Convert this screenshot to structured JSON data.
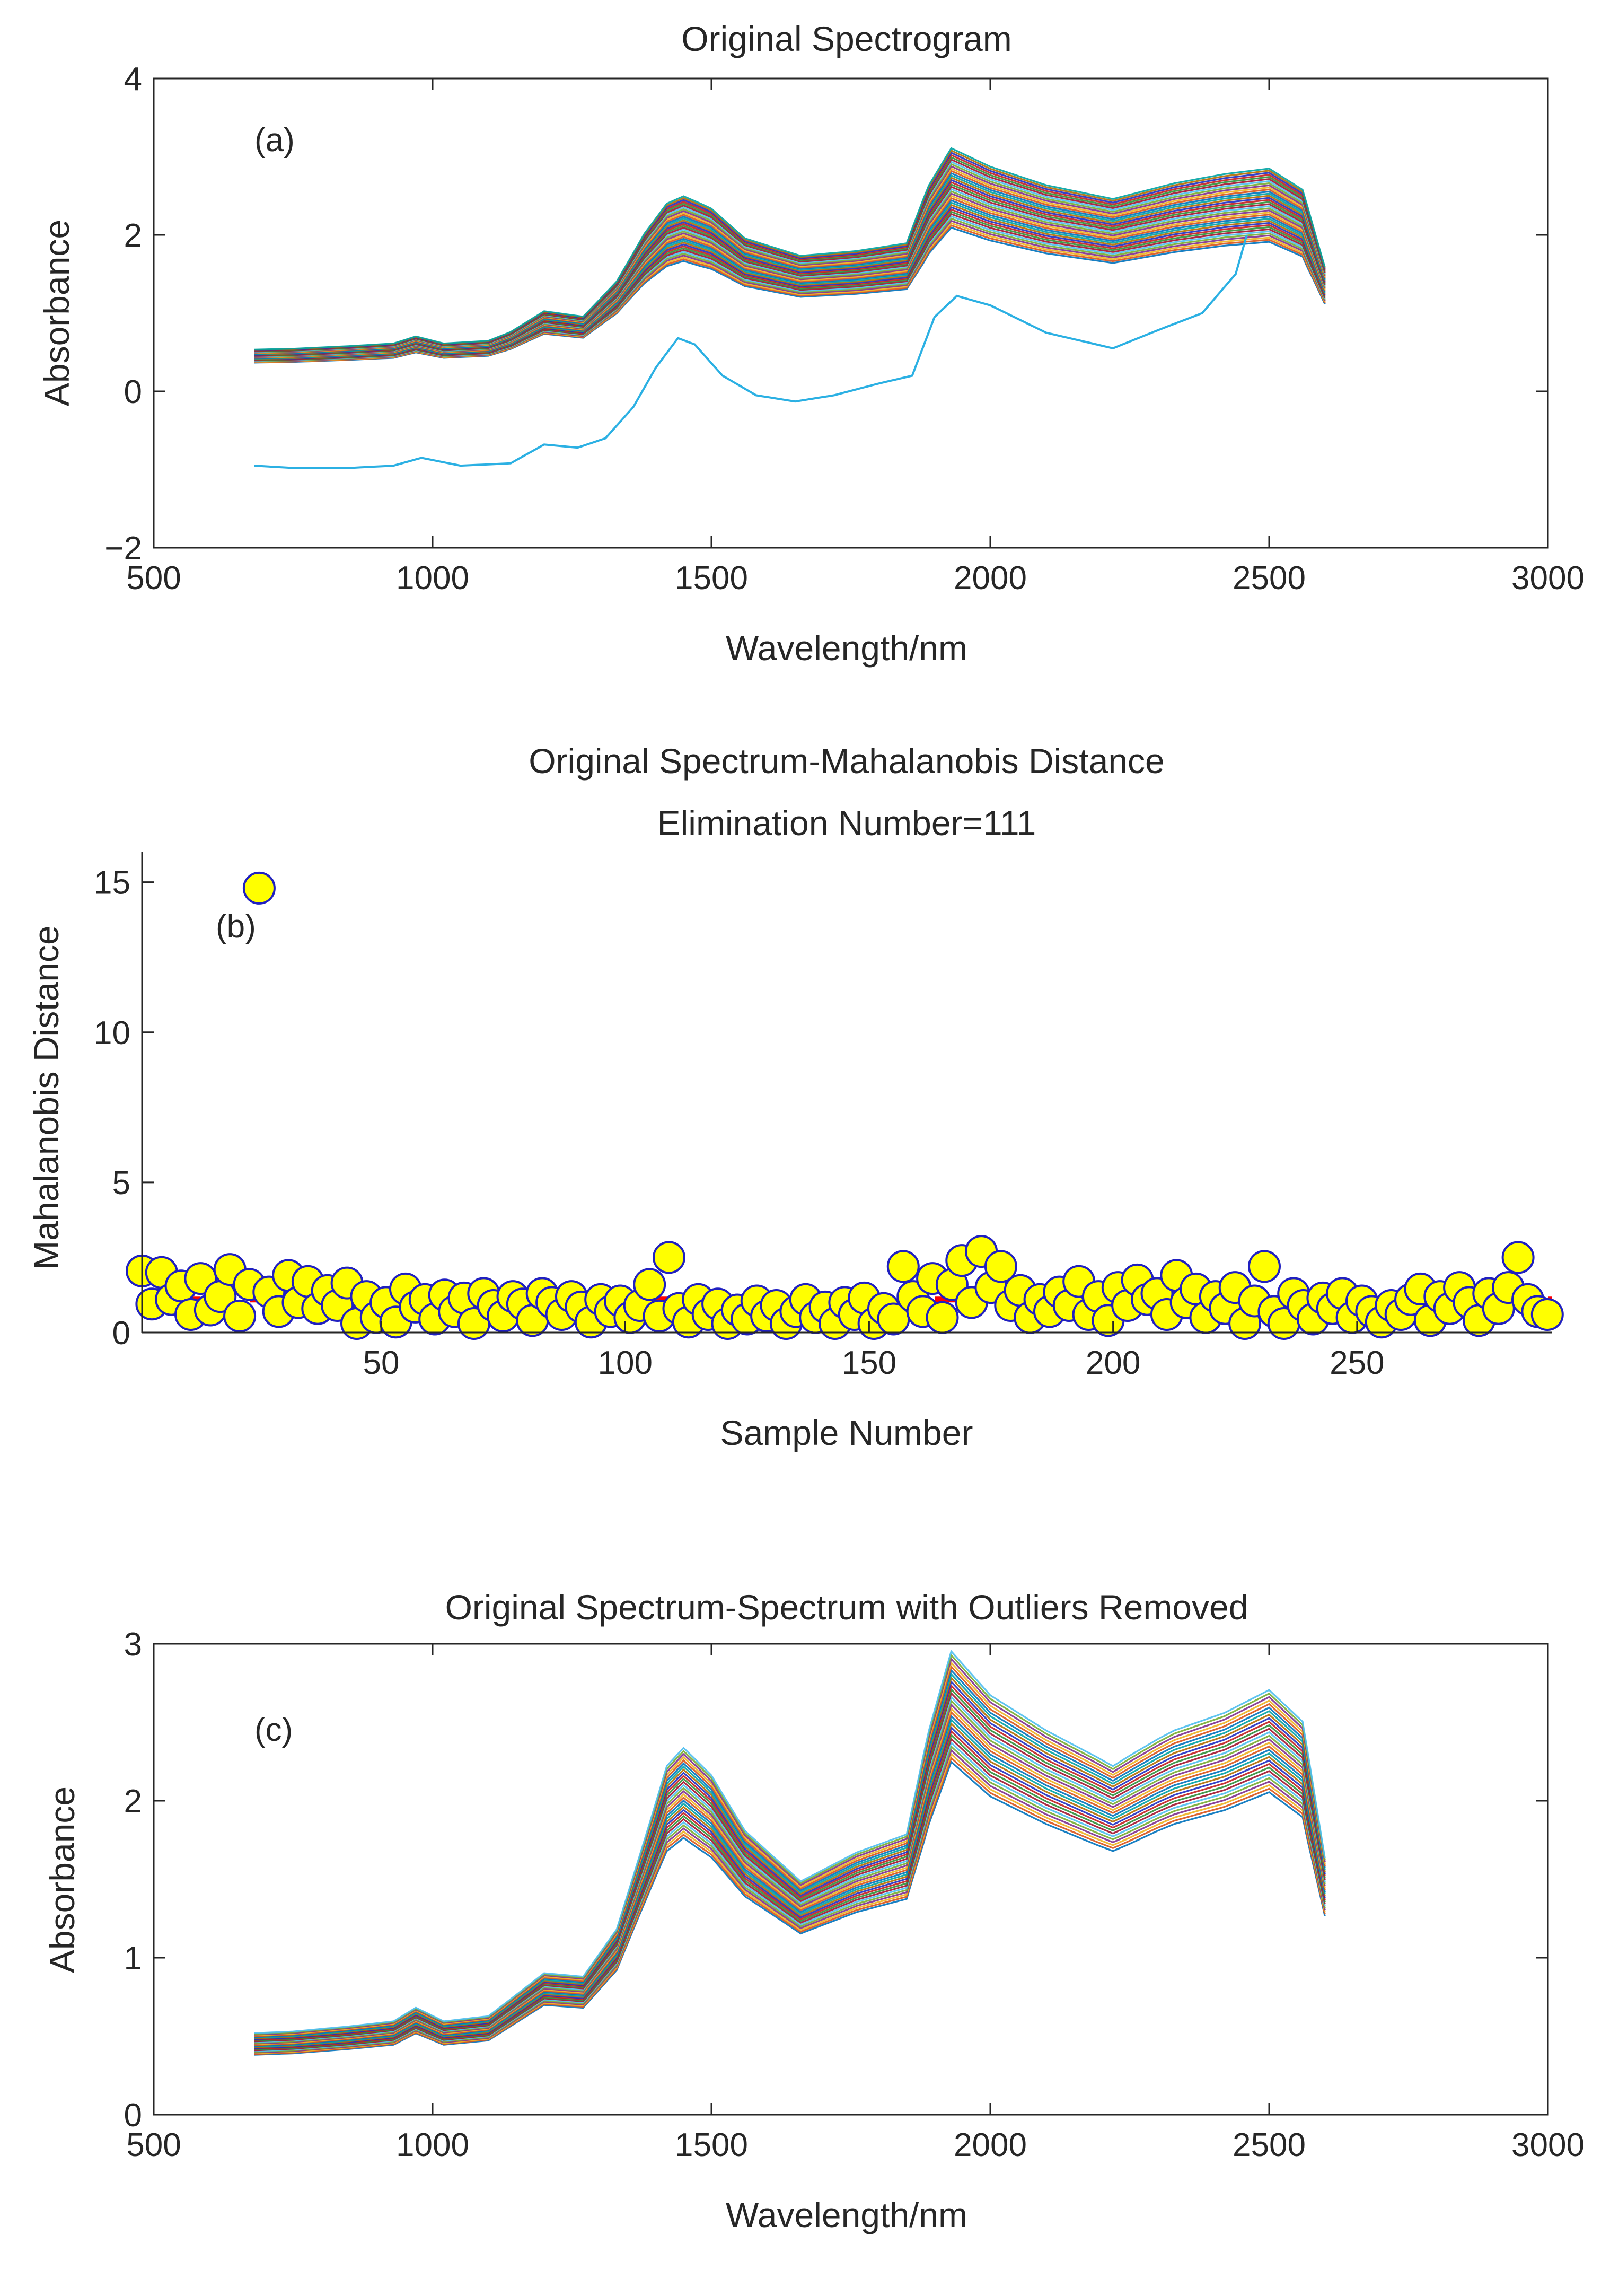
{
  "figure": {
    "panels": [
      {
        "title_lines": [
          "Original Spectrogram"
        ],
        "xlabel": "Wavelength/nm",
        "ylabel": "Absorbance",
        "panel_label": "(a)"
      },
      {
        "title_lines": [
          "Original Spectrum-Mahalanobis Distance",
          "Elimination Number=111"
        ],
        "xlabel": "Sample Number",
        "ylabel": "Mahalanobis Distance",
        "panel_label": "(b)"
      },
      {
        "title_lines": [
          "Original Spectrum-Spectrum with Outliers Removed"
        ],
        "xlabel": "Wavelength/nm",
        "ylabel": "Absorbance",
        "panel_label": "(c)"
      }
    ]
  },
  "chart_data": [
    {
      "type": "line",
      "title": "Original Spectrogram",
      "xlabel": "Wavelength/nm",
      "ylabel": "Absorbance",
      "xlim": [
        500,
        3000
      ],
      "ylim": [
        -2,
        4
      ],
      "xticks": [
        500,
        1000,
        1500,
        2000,
        2500,
        3000
      ],
      "yticks": [
        -2,
        0,
        2,
        4
      ],
      "x": [
        680,
        750,
        850,
        930,
        970,
        1020,
        1100,
        1140,
        1200,
        1270,
        1330,
        1380,
        1420,
        1450,
        1500,
        1560,
        1660,
        1760,
        1850,
        1890,
        1930,
        2000,
        2100,
        2220,
        2330,
        2420,
        2500,
        2560,
        2600
      ],
      "mean_spectrum": [
        0.45,
        0.46,
        0.49,
        0.52,
        0.6,
        0.52,
        0.55,
        0.65,
        0.88,
        0.82,
        1.2,
        1.7,
        2.0,
        2.08,
        1.95,
        1.65,
        1.47,
        1.52,
        1.6,
        2.2,
        2.6,
        2.4,
        2.2,
        2.05,
        2.22,
        2.32,
        2.38,
        2.15,
        1.35
      ],
      "spread": 0.18,
      "line_count": 290,
      "outlier_spectrum": {
        "x": [
          680,
          750,
          850,
          930,
          980,
          1050,
          1140,
          1200,
          1260,
          1310,
          1360,
          1400,
          1440,
          1470,
          1520,
          1580,
          1650,
          1720,
          1800,
          1860,
          1900,
          1940,
          2000,
          2100,
          2220,
          2300,
          2380,
          2440,
          2460
        ],
        "y": [
          -0.95,
          -0.98,
          -0.98,
          -0.95,
          -0.85,
          -0.95,
          -0.92,
          -0.68,
          -0.72,
          -0.6,
          -0.2,
          0.3,
          0.68,
          0.6,
          0.2,
          -0.05,
          -0.13,
          -0.05,
          0.1,
          0.2,
          0.95,
          1.22,
          1.1,
          0.75,
          0.55,
          0.78,
          1.0,
          1.5,
          2.0
        ],
        "color": "#2bb0e3"
      }
    },
    {
      "type": "scatter",
      "title": "Original Spectrum-Mahalanobis Distance",
      "subtitle": "Elimination Number=111",
      "xlabel": "Sample Number",
      "ylabel": "Mahalanobis Distance",
      "xlim": [
        1,
        290
      ],
      "ylim": [
        0,
        16
      ],
      "xticks": [
        50,
        100,
        150,
        200,
        250
      ],
      "yticks": [
        0,
        5,
        10,
        15
      ],
      "threshold": 1.1,
      "threshold_color": "#ff0000",
      "marker_fill": "#ffff00",
      "marker_edge": "#2020c0",
      "points": [
        {
          "x": 1,
          "y": 2.05
        },
        {
          "x": 3,
          "y": 0.95
        },
        {
          "x": 5,
          "y": 2.0
        },
        {
          "x": 7,
          "y": 1.1
        },
        {
          "x": 9,
          "y": 1.55
        },
        {
          "x": 11,
          "y": 0.6
        },
        {
          "x": 13,
          "y": 1.8
        },
        {
          "x": 15,
          "y": 0.75
        },
        {
          "x": 17,
          "y": 1.2
        },
        {
          "x": 19,
          "y": 2.1
        },
        {
          "x": 21,
          "y": 0.55
        },
        {
          "x": 23,
          "y": 1.6
        },
        {
          "x": 25,
          "y": 14.8
        },
        {
          "x": 27,
          "y": 1.35
        },
        {
          "x": 29,
          "y": 0.7
        },
        {
          "x": 31,
          "y": 1.9
        },
        {
          "x": 33,
          "y": 1.0
        },
        {
          "x": 35,
          "y": 1.7
        },
        {
          "x": 37,
          "y": 0.8
        },
        {
          "x": 39,
          "y": 1.4
        },
        {
          "x": 41,
          "y": 0.9
        },
        {
          "x": 43,
          "y": 1.65
        },
        {
          "x": 45,
          "y": 0.3
        },
        {
          "x": 47,
          "y": 1.2
        },
        {
          "x": 49,
          "y": 0.5
        },
        {
          "x": 51,
          "y": 1.0
        },
        {
          "x": 53,
          "y": 0.35
        },
        {
          "x": 55,
          "y": 1.45
        },
        {
          "x": 57,
          "y": 0.85
        },
        {
          "x": 59,
          "y": 1.1
        },
        {
          "x": 61,
          "y": 0.45
        },
        {
          "x": 63,
          "y": 1.25
        },
        {
          "x": 65,
          "y": 0.7
        },
        {
          "x": 67,
          "y": 1.15
        },
        {
          "x": 69,
          "y": 0.3
        },
        {
          "x": 71,
          "y": 1.3
        },
        {
          "x": 73,
          "y": 0.9
        },
        {
          "x": 75,
          "y": 0.55
        },
        {
          "x": 77,
          "y": 1.2
        },
        {
          "x": 79,
          "y": 0.95
        },
        {
          "x": 81,
          "y": 0.4
        },
        {
          "x": 83,
          "y": 1.3
        },
        {
          "x": 85,
          "y": 1.0
        },
        {
          "x": 87,
          "y": 0.6
        },
        {
          "x": 89,
          "y": 1.2
        },
        {
          "x": 91,
          "y": 0.85
        },
        {
          "x": 93,
          "y": 0.35
        },
        {
          "x": 95,
          "y": 1.1
        },
        {
          "x": 97,
          "y": 0.7
        },
        {
          "x": 99,
          "y": 1.05
        },
        {
          "x": 101,
          "y": 0.5
        },
        {
          "x": 103,
          "y": 0.9
        },
        {
          "x": 105,
          "y": 1.6
        },
        {
          "x": 107,
          "y": 0.55
        },
        {
          "x": 109,
          "y": 2.5
        },
        {
          "x": 111,
          "y": 0.8
        },
        {
          "x": 113,
          "y": 0.35
        },
        {
          "x": 115,
          "y": 1.1
        },
        {
          "x": 117,
          "y": 0.6
        },
        {
          "x": 119,
          "y": 0.95
        },
        {
          "x": 121,
          "y": 0.3
        },
        {
          "x": 123,
          "y": 0.75
        },
        {
          "x": 125,
          "y": 0.45
        },
        {
          "x": 127,
          "y": 1.05
        },
        {
          "x": 129,
          "y": 0.55
        },
        {
          "x": 131,
          "y": 0.9
        },
        {
          "x": 133,
          "y": 0.3
        },
        {
          "x": 135,
          "y": 0.7
        },
        {
          "x": 137,
          "y": 1.1
        },
        {
          "x": 139,
          "y": 0.5
        },
        {
          "x": 141,
          "y": 0.85
        },
        {
          "x": 143,
          "y": 0.3
        },
        {
          "x": 145,
          "y": 1.0
        },
        {
          "x": 147,
          "y": 0.6
        },
        {
          "x": 149,
          "y": 1.15
        },
        {
          "x": 151,
          "y": 0.3
        },
        {
          "x": 153,
          "y": 0.8
        },
        {
          "x": 155,
          "y": 0.45
        },
        {
          "x": 157,
          "y": 2.2
        },
        {
          "x": 159,
          "y": 1.2
        },
        {
          "x": 161,
          "y": 0.7
        },
        {
          "x": 163,
          "y": 1.8
        },
        {
          "x": 165,
          "y": 0.5
        },
        {
          "x": 167,
          "y": 1.6
        },
        {
          "x": 169,
          "y": 2.4
        },
        {
          "x": 171,
          "y": 1.0
        },
        {
          "x": 173,
          "y": 2.7
        },
        {
          "x": 175,
          "y": 1.5
        },
        {
          "x": 177,
          "y": 2.2
        },
        {
          "x": 179,
          "y": 0.9
        },
        {
          "x": 181,
          "y": 1.4
        },
        {
          "x": 183,
          "y": 0.5
        },
        {
          "x": 185,
          "y": 1.1
        },
        {
          "x": 187,
          "y": 0.7
        },
        {
          "x": 189,
          "y": 1.35
        },
        {
          "x": 191,
          "y": 0.9
        },
        {
          "x": 193,
          "y": 1.7
        },
        {
          "x": 195,
          "y": 0.6
        },
        {
          "x": 197,
          "y": 1.2
        },
        {
          "x": 199,
          "y": 0.4
        },
        {
          "x": 201,
          "y": 1.5
        },
        {
          "x": 203,
          "y": 0.9
        },
        {
          "x": 205,
          "y": 1.75
        },
        {
          "x": 207,
          "y": 1.1
        },
        {
          "x": 209,
          "y": 1.3
        },
        {
          "x": 211,
          "y": 0.6
        },
        {
          "x": 213,
          "y": 1.9
        },
        {
          "x": 215,
          "y": 1.0
        },
        {
          "x": 217,
          "y": 1.45
        },
        {
          "x": 219,
          "y": 0.5
        },
        {
          "x": 221,
          "y": 1.2
        },
        {
          "x": 223,
          "y": 0.8
        },
        {
          "x": 225,
          "y": 1.5
        },
        {
          "x": 227,
          "y": 0.3
        },
        {
          "x": 229,
          "y": 1.05
        },
        {
          "x": 231,
          "y": 2.2
        },
        {
          "x": 233,
          "y": 0.7
        },
        {
          "x": 235,
          "y": 0.3
        },
        {
          "x": 237,
          "y": 1.3
        },
        {
          "x": 239,
          "y": 0.9
        },
        {
          "x": 241,
          "y": 0.45
        },
        {
          "x": 243,
          "y": 1.15
        },
        {
          "x": 245,
          "y": 0.8
        },
        {
          "x": 247,
          "y": 1.3
        },
        {
          "x": 249,
          "y": 0.5
        },
        {
          "x": 251,
          "y": 1.05
        },
        {
          "x": 253,
          "y": 0.7
        },
        {
          "x": 255,
          "y": 0.35
        },
        {
          "x": 257,
          "y": 0.9
        },
        {
          "x": 259,
          "y": 0.6
        },
        {
          "x": 261,
          "y": 1.1
        },
        {
          "x": 263,
          "y": 1.45
        },
        {
          "x": 265,
          "y": 0.4
        },
        {
          "x": 267,
          "y": 1.2
        },
        {
          "x": 269,
          "y": 0.8
        },
        {
          "x": 271,
          "y": 1.5
        },
        {
          "x": 273,
          "y": 1.0
        },
        {
          "x": 275,
          "y": 0.4
        },
        {
          "x": 277,
          "y": 1.3
        },
        {
          "x": 279,
          "y": 0.8
        },
        {
          "x": 281,
          "y": 1.5
        },
        {
          "x": 283,
          "y": 2.5
        },
        {
          "x": 285,
          "y": 1.1
        },
        {
          "x": 287,
          "y": 0.7
        },
        {
          "x": 289,
          "y": 0.6
        }
      ]
    },
    {
      "type": "line",
      "title": "Original Spectrum-Spectrum with Outliers Removed",
      "xlabel": "Wavelength/nm",
      "ylabel": "Absorbance",
      "xlim": [
        500,
        3000
      ],
      "ylim": [
        0,
        3
      ],
      "xticks": [
        500,
        1000,
        1500,
        2000,
        2500,
        3000
      ],
      "yticks": [
        0,
        1,
        2,
        3
      ],
      "x": [
        680,
        750,
        850,
        930,
        970,
        1020,
        1100,
        1140,
        1200,
        1270,
        1330,
        1380,
        1420,
        1450,
        1500,
        1560,
        1660,
        1760,
        1850,
        1890,
        1930,
        2000,
        2100,
        2220,
        2300,
        2330,
        2420,
        2500,
        2560,
        2600
      ],
      "mean_spectrum": [
        0.45,
        0.46,
        0.49,
        0.52,
        0.6,
        0.52,
        0.55,
        0.65,
        0.8,
        0.78,
        1.05,
        1.55,
        1.95,
        2.05,
        1.9,
        1.6,
        1.32,
        1.48,
        1.58,
        2.15,
        2.6,
        2.35,
        2.15,
        1.95,
        2.1,
        2.15,
        2.25,
        2.38,
        2.2,
        1.45
      ],
      "spread": 0.12,
      "line_count": 179
    }
  ]
}
